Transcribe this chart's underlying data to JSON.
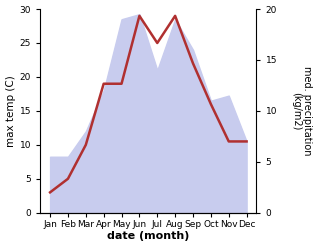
{
  "months": [
    "Jan",
    "Feb",
    "Mar",
    "Apr",
    "May",
    "Jun",
    "Jul",
    "Aug",
    "Sep",
    "Oct",
    "Nov",
    "Dec"
  ],
  "temperature": [
    3,
    5,
    10,
    19,
    19,
    29,
    25,
    29,
    22,
    16,
    10.5,
    10.5
  ],
  "precipitation": [
    5.5,
    5.5,
    8,
    12,
    19,
    19.5,
    14,
    19,
    16,
    11,
    11.5,
    7
  ],
  "temp_color": "#b03030",
  "precip_fill_color": "#c8ccee",
  "temp_ylim": [
    0,
    30
  ],
  "precip_ylim": [
    0,
    20
  ],
  "temp_yticks": [
    0,
    5,
    10,
    15,
    20,
    25,
    30
  ],
  "precip_yticks": [
    0,
    5,
    10,
    15,
    20
  ],
  "xlabel": "date (month)",
  "ylabel_left": "max temp (C)",
  "ylabel_right": "med. precipitation\n(kg/m2)",
  "background_color": "#ffffff",
  "line_width": 1.8,
  "figsize": [
    3.18,
    2.47
  ],
  "dpi": 100
}
